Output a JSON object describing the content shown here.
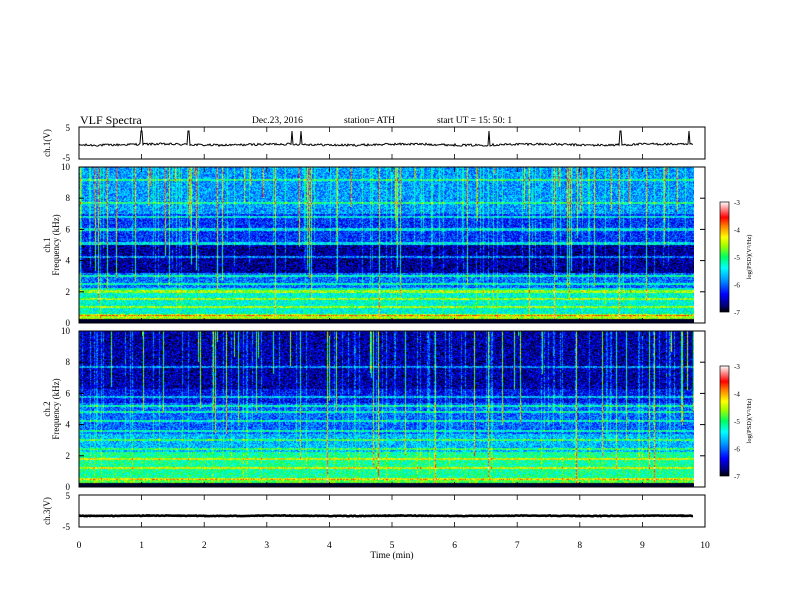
{
  "header": {
    "title": "VLF  Spectra",
    "date": "Dec.23, 2016",
    "station": "station= ATH",
    "start": "start  UT  =    15: 50: 1"
  },
  "chart_data": [
    {
      "type": "line",
      "name": "ch1-waveform",
      "ylabel": "ch.1(V)",
      "yticks": [
        "5",
        "-5"
      ],
      "ylim": [
        -5,
        5
      ],
      "baseline": -0.5,
      "noise": 0.35,
      "spikes": [
        1.0,
        1.75,
        3.4,
        3.55,
        6.55,
        8.65,
        9.75
      ]
    },
    {
      "type": "heatmap",
      "name": "ch1-spectrogram",
      "ylabel": "ch.1",
      "ylabel2": "Frequency (kHz)",
      "ylim": [
        0,
        10
      ],
      "yticks": [
        0,
        2,
        4,
        6,
        8,
        10
      ],
      "colorbar": {
        "label": "log(PSD)(V²/Hz)",
        "range": [
          -7,
          -3
        ],
        "ticks": [
          "-3",
          "-4",
          "-5",
          "-6",
          "-7"
        ]
      },
      "bands_khz": [
        0.5,
        1.0,
        1.5,
        2.0,
        2.5,
        3.0,
        4.2,
        5.1,
        6.0,
        6.8,
        7.7,
        9.2
      ],
      "quiet_band_khz": [
        3.2,
        5.0
      ]
    },
    {
      "type": "heatmap",
      "name": "ch2-spectrogram",
      "ylabel": "ch.2",
      "ylabel2": "Frequency (kHz)",
      "ylim": [
        0,
        10
      ],
      "yticks": [
        0,
        2,
        4,
        6,
        8,
        10
      ],
      "colorbar": {
        "label": "log(PSD)(V²/Hz)",
        "range": [
          -7,
          -3
        ],
        "ticks": [
          "-3",
          "-4",
          "-5",
          "-6",
          "-7"
        ]
      },
      "bands_khz": [
        0.5,
        1.2,
        1.8,
        2.4,
        3.0,
        3.6,
        4.2,
        4.8,
        5.2,
        5.8,
        7.7
      ],
      "quiet_band_khz": [
        6.5,
        9.5
      ]
    },
    {
      "type": "line",
      "name": "ch3-waveform",
      "ylabel": "ch.3(V)",
      "yticks": [
        "5",
        "-5"
      ],
      "ylim": [
        -5,
        5
      ],
      "baseline": -1.5,
      "noise": 0.1
    }
  ],
  "xaxis": {
    "label": "Time  (min)",
    "range": [
      0,
      10
    ],
    "ticks": [
      "0",
      "1",
      "2",
      "3",
      "4",
      "5",
      "6",
      "7",
      "8",
      "9",
      "10"
    ],
    "data_end": 9.82
  }
}
